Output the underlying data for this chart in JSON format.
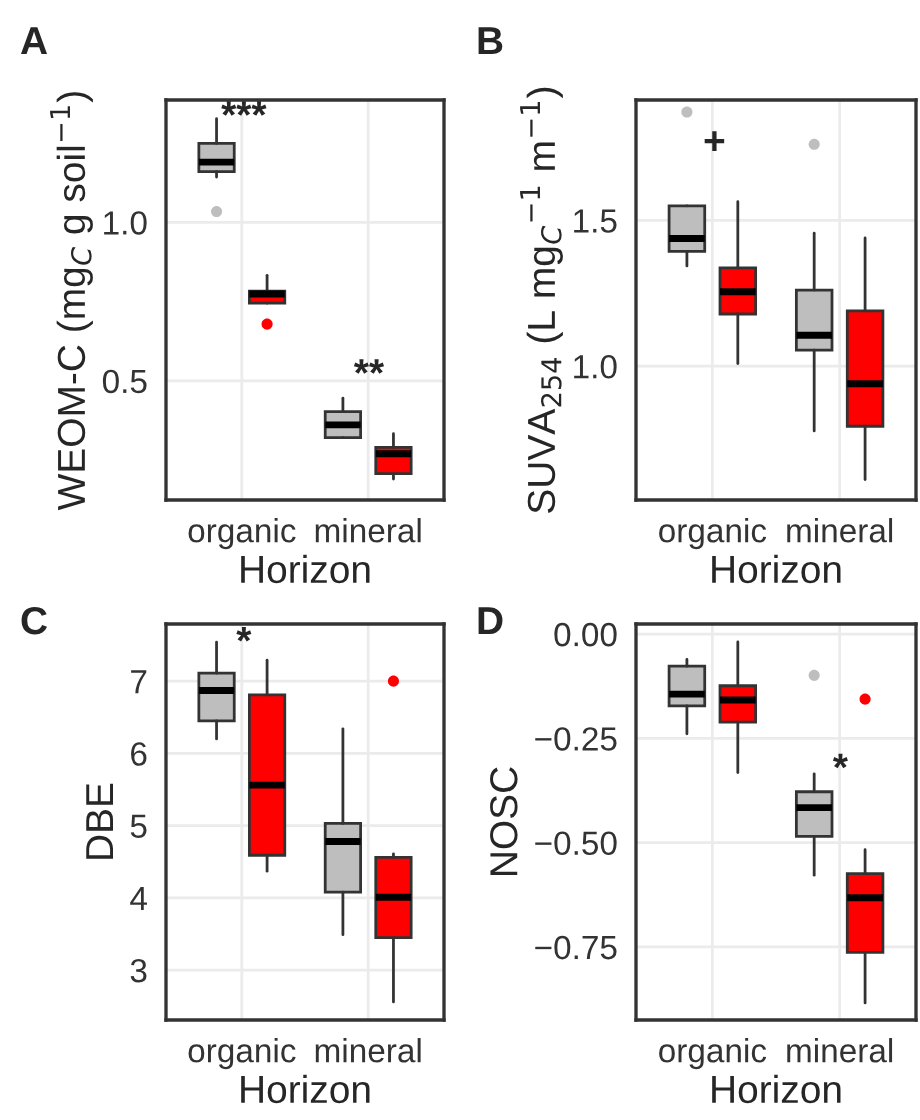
{
  "chart_data": [
    {
      "type": "box",
      "title": "A",
      "xlabel": "Horizon",
      "ylabel": "WEOM-C (mg$_{C}$ g soil$^{−1}$)",
      "categories": [
        "organic",
        "mineral"
      ],
      "ylim": [
        0.124,
        1.386
      ],
      "yticks": [
        {
          "value": 0.5,
          "label": "0.5"
        },
        {
          "value": 1.0,
          "label": "1.0"
        }
      ],
      "grid": true,
      "legend": false,
      "series": [
        {
          "color": "#bebebe",
          "boxes": [
            {
              "low": 1.143,
              "q1": 1.16,
              "median": 1.19,
              "q3": 1.249,
              "high": 1.327,
              "outliers": [
                1.034
              ]
            },
            {
              "low": 0.321,
              "q1": 0.321,
              "median": 0.361,
              "q3": 0.403,
              "high": 0.445
            }
          ]
        },
        {
          "color": "#ff0000",
          "boxes": [
            {
              "low": 0.745,
              "q1": 0.745,
              "median": 0.774,
              "q3": 0.783,
              "high": 0.833,
              "outliers": [
                0.679
              ]
            },
            {
              "low": 0.19,
              "q1": 0.207,
              "median": 0.27,
              "q3": 0.29,
              "high": 0.333
            }
          ]
        }
      ],
      "annotations": [
        "***",
        "**"
      ]
    },
    {
      "type": "box",
      "title": "B",
      "xlabel": "Horizon",
      "ylabel": "SUVA$_{254}$ (L mg$_{C}$$^{−1}$ m$^{−1}$)",
      "categories": [
        "organic",
        "mineral"
      ],
      "ylim": [
        0.541,
        1.913
      ],
      "yticks": [
        {
          "value": 1.0,
          "label": "1.0"
        },
        {
          "value": 1.5,
          "label": "1.5"
        }
      ],
      "grid": true,
      "legend": false,
      "series": [
        {
          "color": "#bebebe",
          "boxes": [
            {
              "low": 1.344,
              "q1": 1.394,
              "median": 1.438,
              "q3": 1.55,
              "high": 1.55,
              "outliers": [
                1.872
              ]
            },
            {
              "low": 0.778,
              "q1": 1.055,
              "median": 1.106,
              "q3": 1.261,
              "high": 1.456,
              "outliers": [
                1.761
              ]
            }
          ]
        },
        {
          "color": "#ff0000",
          "boxes": [
            {
              "low": 1.009,
              "q1": 1.179,
              "median": 1.255,
              "q3": 1.337,
              "high": 1.564
            },
            {
              "low": 0.611,
              "q1": 0.794,
              "median": 0.94,
              "q3": 1.19,
              "high": 1.44
            }
          ]
        }
      ],
      "annotations": [
        "+"
      ]
    },
    {
      "type": "box",
      "title": "C",
      "xlabel": "Horizon",
      "ylabel": "DBE",
      "categories": [
        "organic",
        "mineral"
      ],
      "ylim": [
        2.31,
        7.79
      ],
      "yticks": [
        3,
        4,
        5,
        6,
        7
      ],
      "grid": true,
      "legend": false,
      "series": [
        {
          "color": "#bebebe",
          "boxes": [
            {
              "low": 6.2,
              "q1": 6.45,
              "median": 6.87,
              "q3": 7.11,
              "high": 7.54
            },
            {
              "low": 3.49,
              "q1": 4.08,
              "median": 4.78,
              "q3": 5.03,
              "high": 6.34
            }
          ]
        },
        {
          "color": "#ff0000",
          "boxes": [
            {
              "low": 4.37,
              "q1": 4.59,
              "median": 5.56,
              "q3": 6.81,
              "high": 7.29
            },
            {
              "low": 2.56,
              "q1": 3.45,
              "median": 4.01,
              "q3": 4.56,
              "high": 4.61,
              "outliers": [
                7.0
              ]
            }
          ]
        }
      ],
      "annotations": [
        "*"
      ]
    },
    {
      "type": "box",
      "title": "D",
      "xlabel": "Horizon",
      "ylabel": "NOSC",
      "categories": [
        "organic",
        "mineral"
      ],
      "ylim": [
        -0.925,
        0.024
      ],
      "yticks": [
        {
          "value": -0.75,
          "label": "−0.75"
        },
        {
          "value": -0.5,
          "label": "−0.50"
        },
        {
          "value": -0.25,
          "label": "−0.25"
        },
        {
          "value": 0.0,
          "label": "0.00"
        }
      ],
      "grid": true,
      "legend": false,
      "series": [
        {
          "color": "#bebebe",
          "boxes": [
            {
              "low": -0.239,
              "q1": -0.172,
              "median": -0.144,
              "q3": -0.077,
              "high": -0.061
            },
            {
              "low": -0.578,
              "q1": -0.485,
              "median": -0.416,
              "q3": -0.378,
              "high": -0.335,
              "outliers": [
                -0.099
              ]
            }
          ]
        },
        {
          "color": "#ff0000",
          "boxes": [
            {
              "low": -0.332,
              "q1": -0.211,
              "median": -0.158,
              "q3": -0.124,
              "high": -0.019
            },
            {
              "low": -0.884,
              "q1": -0.763,
              "median": -0.632,
              "q3": -0.574,
              "high": -0.517,
              "outliers": [
                -0.156
              ]
            }
          ]
        }
      ],
      "annotations": [
        "*"
      ]
    }
  ]
}
